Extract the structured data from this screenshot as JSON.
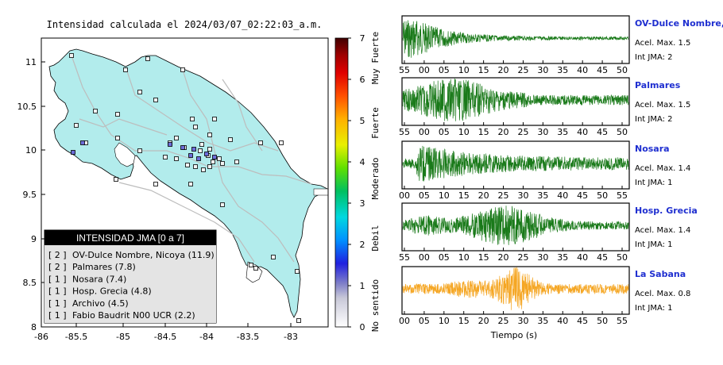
{
  "header": {
    "title": "Intensidad calculada el 2024/03/07_02:22:03_a.m."
  },
  "map": {
    "x_ticks": [
      "-86",
      "-85.5",
      "-85",
      "-84.5",
      "-84",
      "-83.5",
      "-83"
    ],
    "y_ticks": [
      "11",
      "10.5",
      "10",
      "9.5",
      "9",
      "8.5",
      "8"
    ],
    "land_color": "#b2ecec",
    "road_color": "#bdbdbd"
  },
  "legend": {
    "title": "INTENSIDAD JMA [0 a 7]",
    "items": [
      {
        "level": "[ 2 ]",
        "name": "OV-Dulce Nombre, Nicoya (11.9)"
      },
      {
        "level": "[ 2 ]",
        "name": "Palmares (7.8)"
      },
      {
        "level": "[ 1 ]",
        "name": "Nosara (7.4)"
      },
      {
        "level": "[ 1 ]",
        "name": "Hosp. Grecia (4.8)"
      },
      {
        "level": "[ 1 ]",
        "name": "Archivo (4.5)"
      },
      {
        "level": "[ 1 ]",
        "name": "Fabio Baudrit N00 UCR (2.2)"
      }
    ]
  },
  "colorbar": {
    "ticks": [
      "0",
      "1",
      "2",
      "3",
      "4",
      "5",
      "6",
      "7"
    ],
    "labels": [
      "No sentido",
      "Debil",
      "Moderado",
      "Fuerte",
      "Muy Fuerte"
    ]
  },
  "waveforms": {
    "xlabel": "Tiempo (s)",
    "panels": [
      {
        "name": "OV-Dulce Nombre, Nicoya",
        "accel": "Acel. Max. 1.5",
        "jma": "Int JMA: 2",
        "color": "#1a7a1a",
        "ticks": [
          "55",
          "00",
          "05",
          "10",
          "15",
          "20",
          "25",
          "30",
          "35",
          "40",
          "45",
          "50"
        ]
      },
      {
        "name": "Palmares",
        "accel": "Acel. Max. 1.5",
        "jma": "Int JMA: 2",
        "color": "#1a7a1a",
        "ticks": [
          "55",
          "00",
          "05",
          "10",
          "15",
          "20",
          "25",
          "30",
          "35",
          "40",
          "45",
          "50"
        ]
      },
      {
        "name": "Nosara",
        "accel": "Acel. Max. 1.4",
        "jma": "Int JMA: 1",
        "color": "#1a7a1a",
        "ticks": [
          "00",
          "05",
          "10",
          "15",
          "20",
          "25",
          "30",
          "35",
          "40",
          "45",
          "50",
          "55"
        ]
      },
      {
        "name": "Hosp. Grecia",
        "accel": "Acel. Max. 1.4",
        "jma": "Int JMA: 1",
        "color": "#1a7a1a",
        "ticks": [
          "55",
          "00",
          "05",
          "10",
          "15",
          "20",
          "25",
          "30",
          "35",
          "40",
          "45",
          "50"
        ]
      },
      {
        "name": "La Sabana",
        "accel": "Acel. Max. 0.8",
        "jma": "Int JMA: 1",
        "color": "#f5a623",
        "ticks": [
          "00",
          "05",
          "10",
          "15",
          "20",
          "25",
          "30",
          "35",
          "40",
          "45",
          "50",
          "55"
        ]
      }
    ]
  }
}
